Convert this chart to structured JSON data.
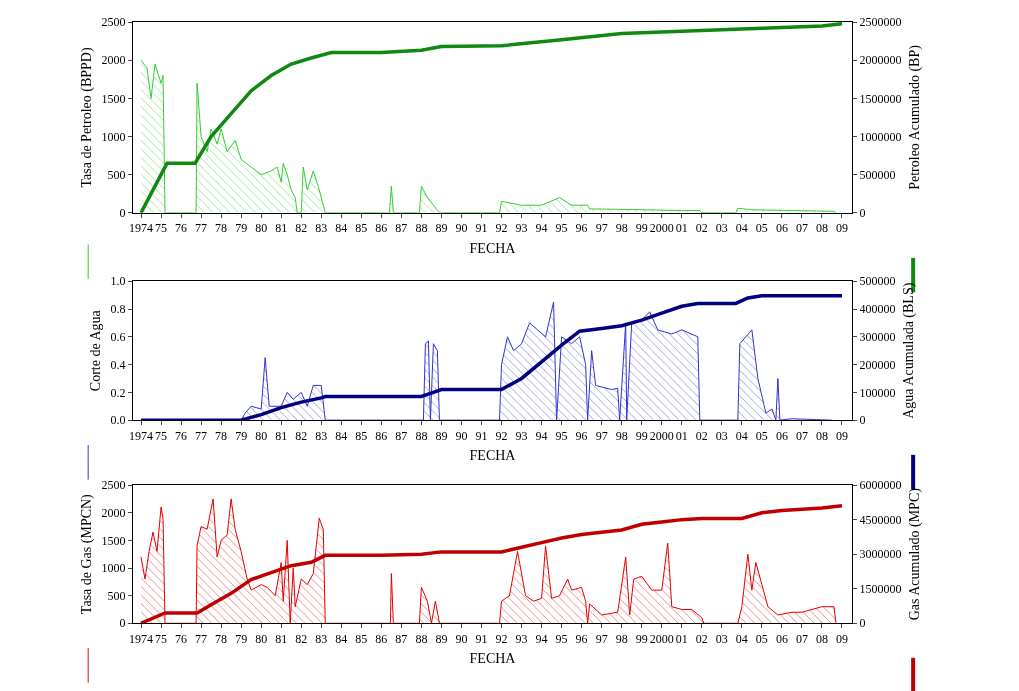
{
  "chart_data": [
    {
      "type": "area",
      "xlabel": "FECHA",
      "ylabel": "Tasa de Petroleo (BPPD)",
      "y2label": "Petroleo Acumulado (BP)",
      "xlim": [
        1973.6,
        2009.5
      ],
      "xticks": [
        {
          "value": 1974,
          "label": "1974"
        },
        {
          "value": 1975,
          "label": "75"
        },
        {
          "value": 1976,
          "label": "76"
        },
        {
          "value": 1977,
          "label": "77"
        },
        {
          "value": 1978,
          "label": "78"
        },
        {
          "value": 1979,
          "label": "79"
        },
        {
          "value": 1980,
          "label": "80"
        },
        {
          "value": 1981,
          "label": "81"
        },
        {
          "value": 1982,
          "label": "82"
        },
        {
          "value": 1983,
          "label": "83"
        },
        {
          "value": 1984,
          "label": "84"
        },
        {
          "value": 1985,
          "label": "85"
        },
        {
          "value": 1986,
          "label": "86"
        },
        {
          "value": 1987,
          "label": "87"
        },
        {
          "value": 1988,
          "label": "88"
        },
        {
          "value": 1989,
          "label": "89"
        },
        {
          "value": 1990,
          "label": "90"
        },
        {
          "value": 1991,
          "label": "91"
        },
        {
          "value": 1992,
          "label": "92"
        },
        {
          "value": 1993,
          "label": "93"
        },
        {
          "value": 1994,
          "label": "94"
        },
        {
          "value": 1995,
          "label": "95"
        },
        {
          "value": 1996,
          "label": "96"
        },
        {
          "value": 1997,
          "label": "97"
        },
        {
          "value": 1998,
          "label": "98"
        },
        {
          "value": 1999,
          "label": "99"
        },
        {
          "value": 2000,
          "label": "2000"
        },
        {
          "value": 2001,
          "label": "01"
        },
        {
          "value": 2002,
          "label": "02"
        },
        {
          "value": 2003,
          "label": "03"
        },
        {
          "value": 2004,
          "label": "04"
        },
        {
          "value": 2005,
          "label": "05"
        },
        {
          "value": 2006,
          "label": "06"
        },
        {
          "value": 2007,
          "label": "07"
        },
        {
          "value": 2008,
          "label": "08"
        },
        {
          "value": 2009,
          "label": "09"
        }
      ],
      "ylim": [
        0,
        2500
      ],
      "yticks": [
        0,
        500,
        1000,
        1500,
        2000,
        2500
      ],
      "y2lim": [
        0,
        2500000
      ],
      "y2ticks": [
        0,
        500000,
        1000000,
        1500000,
        2000000,
        2500000
      ],
      "series": [
        {
          "color": "#33cc33",
          "x": [
            1974.0,
            1974.3,
            1974.5,
            1974.7,
            1975.0,
            1975.1,
            1975.2,
            1976.75,
            1976.8,
            1977.0,
            1977.3,
            1977.5,
            1977.8,
            1978.0,
            1978.3,
            1978.7,
            1979.0,
            1979.5,
            1980.0,
            1980.5,
            1980.8,
            1981.0,
            1981.1,
            1981.3,
            1981.5,
            1981.7,
            1981.8,
            1982.0,
            1982.1,
            1982.3,
            1982.6,
            1982.9,
            1983.1,
            1983.2,
            1986.4,
            1986.5,
            1986.6,
            1987.9,
            1988.0,
            1988.3,
            1988.6,
            1988.9,
            1991.9,
            1992.0,
            1993.0,
            1994.0,
            1994.9,
            1995.5,
            1996.3,
            1996.4,
            1997.0,
            2001.0,
            2001.9,
            2002.0,
            2003.7,
            2003.8,
            2004.5,
            2008.6,
            2008.7
          ],
          "values": [
            2000,
            1900,
            1500,
            1950,
            1700,
            1800,
            0,
            0,
            1700,
            1000,
            800,
            1100,
            900,
            1100,
            800,
            950,
            700,
            600,
            500,
            550,
            600,
            400,
            650,
            500,
            300,
            200,
            0,
            0,
            600,
            300,
            550,
            300,
            100,
            0,
            0,
            350,
            0,
            0,
            350,
            200,
            100,
            0,
            0,
            150,
            100,
            100,
            200,
            100,
            100,
            50,
            50,
            30,
            30,
            0,
            0,
            60,
            40,
            20,
            0
          ]
        },
        {
          "type": "line",
          "axis": "y2",
          "color": "#118811",
          "x": [
            1974.0,
            1975.0,
            1975.3,
            1976.7,
            1977.5,
            1978.5,
            1979.5,
            1980.5,
            1981.5,
            1982.5,
            1983.5,
            1986.0,
            1988.0,
            1989.0,
            1992.0,
            1995.0,
            1998.0,
            2002.0,
            2005.0,
            2008.0,
            2009.0
          ],
          "values": [
            0,
            500000,
            650000,
            650000,
            1000000,
            1300000,
            1600000,
            1800000,
            1950000,
            2030000,
            2100000,
            2100000,
            2130000,
            2180000,
            2190000,
            2270000,
            2350000,
            2390000,
            2420000,
            2450000,
            2480000
          ]
        }
      ]
    },
    {
      "type": "area",
      "xlabel": "FECHA",
      "ylabel": "Corte de Agua",
      "y2label": "Agua Acumulada (BLS)",
      "xlim": [
        1973.6,
        2009.5
      ],
      "xticks": [
        {
          "value": 1974,
          "label": "1974"
        },
        {
          "value": 1975,
          "label": "75"
        },
        {
          "value": 1976,
          "label": "76"
        },
        {
          "value": 1977,
          "label": "77"
        },
        {
          "value": 1978,
          "label": "78"
        },
        {
          "value": 1979,
          "label": "79"
        },
        {
          "value": 1980,
          "label": "80"
        },
        {
          "value": 1981,
          "label": "81"
        },
        {
          "value": 1982,
          "label": "82"
        },
        {
          "value": 1983,
          "label": "83"
        },
        {
          "value": 1984,
          "label": "84"
        },
        {
          "value": 1985,
          "label": "85"
        },
        {
          "value": 1986,
          "label": "86"
        },
        {
          "value": 1987,
          "label": "87"
        },
        {
          "value": 1988,
          "label": "88"
        },
        {
          "value": 1989,
          "label": "89"
        },
        {
          "value": 1990,
          "label": "90"
        },
        {
          "value": 1991,
          "label": "91"
        },
        {
          "value": 1992,
          "label": "92"
        },
        {
          "value": 1993,
          "label": "93"
        },
        {
          "value": 1994,
          "label": "94"
        },
        {
          "value": 1995,
          "label": "95"
        },
        {
          "value": 1996,
          "label": "96"
        },
        {
          "value": 1997,
          "label": "97"
        },
        {
          "value": 1998,
          "label": "98"
        },
        {
          "value": 1999,
          "label": "99"
        },
        {
          "value": 2000,
          "label": "2000"
        },
        {
          "value": 2001,
          "label": "01"
        },
        {
          "value": 2002,
          "label": "02"
        },
        {
          "value": 2003,
          "label": "03"
        },
        {
          "value": 2004,
          "label": "04"
        },
        {
          "value": 2005,
          "label": "05"
        },
        {
          "value": 2006,
          "label": "06"
        },
        {
          "value": 2007,
          "label": "07"
        },
        {
          "value": 2008,
          "label": "08"
        },
        {
          "value": 2009,
          "label": "09"
        }
      ],
      "ylim": [
        0,
        1.0
      ],
      "yticks": [
        {
          "value": 0,
          "label": "0.0"
        },
        {
          "value": 0.2,
          "label": "0.2"
        },
        {
          "value": 0.4,
          "label": "0.4"
        },
        {
          "value": 0.6,
          "label": "0.6"
        },
        {
          "value": 0.8,
          "label": "0.8"
        },
        {
          "value": 1.0,
          "label": "1.0"
        }
      ],
      "y2lim": [
        0,
        500000
      ],
      "y2ticks": [
        0,
        100000,
        200000,
        300000,
        400000,
        500000
      ],
      "series": [
        {
          "color": "#3333cc",
          "x": [
            1974.0,
            1979.0,
            1979.2,
            1979.5,
            1980.0,
            1980.2,
            1980.4,
            1981.0,
            1981.3,
            1981.6,
            1982.0,
            1982.3,
            1982.6,
            1983.0,
            1983.2,
            1988.1,
            1988.2,
            1988.35,
            1988.45,
            1988.6,
            1988.8,
            1988.9,
            1991.9,
            1992.0,
            1992.3,
            1992.6,
            1993.0,
            1993.4,
            1993.8,
            1994.2,
            1994.6,
            1994.75,
            1995.0,
            1995.5,
            1995.9,
            1996.2,
            1996.3,
            1996.5,
            1996.7,
            1997.5,
            1997.8,
            1997.9,
            1998.2,
            1998.25,
            1998.5,
            1999.0,
            1999.4,
            1999.8,
            2000.5,
            2001.0,
            2001.8,
            2001.9,
            2003.8,
            2003.9,
            2004.2,
            2004.5,
            2004.8,
            2005.2,
            2005.5,
            2005.7,
            2005.8,
            2005.9,
            2006.5,
            2008.5
          ],
          "values": [
            0,
            0,
            0.05,
            0.1,
            0.08,
            0.45,
            0.1,
            0.1,
            0.2,
            0.15,
            0.2,
            0.1,
            0.25,
            0.25,
            0,
            0,
            0.55,
            0.57,
            0,
            0.55,
            0.5,
            0,
            0,
            0.4,
            0.6,
            0.5,
            0.55,
            0.7,
            0.65,
            0.6,
            0.85,
            0,
            0.6,
            0.55,
            0.6,
            0.4,
            0,
            0.5,
            0.25,
            0.22,
            0.23,
            0,
            0.7,
            0,
            0.7,
            0.72,
            0.78,
            0.65,
            0.62,
            0.65,
            0.6,
            0,
            0,
            0.55,
            0.6,
            0.65,
            0.3,
            0.05,
            0.08,
            0,
            0.3,
            0,
            0.01,
            0
          ]
        },
        {
          "type": "line",
          "axis": "y2",
          "color": "#000080",
          "x": [
            1974.0,
            1979.0,
            1980.0,
            1981.0,
            1982.0,
            1983.0,
            1983.2,
            1988.0,
            1988.6,
            1989.0,
            1992.0,
            1993.0,
            1994.0,
            1995.0,
            1995.9,
            1997.0,
            1998.0,
            1999.0,
            2000.0,
            2001.0,
            2001.8,
            2003.7,
            2004.3,
            2005.0,
            2009.0
          ],
          "values": [
            0,
            0,
            20000,
            45000,
            65000,
            80000,
            85000,
            85000,
            100000,
            110000,
            110000,
            150000,
            210000,
            270000,
            320000,
            330000,
            340000,
            360000,
            385000,
            410000,
            420000,
            420000,
            440000,
            448000,
            448000
          ]
        }
      ]
    },
    {
      "type": "area",
      "xlabel": "FECHA",
      "ylabel": "Tasa de Gas (MPCN)",
      "y2label": "Gas Acumulado (MPC)",
      "xlim": [
        1973.6,
        2009.5
      ],
      "xticks": [
        {
          "value": 1974,
          "label": "1974"
        },
        {
          "value": 1975,
          "label": "75"
        },
        {
          "value": 1976,
          "label": "76"
        },
        {
          "value": 1977,
          "label": "77"
        },
        {
          "value": 1978,
          "label": "78"
        },
        {
          "value": 1979,
          "label": "79"
        },
        {
          "value": 1980,
          "label": "80"
        },
        {
          "value": 1981,
          "label": "81"
        },
        {
          "value": 1982,
          "label": "82"
        },
        {
          "value": 1983,
          "label": "83"
        },
        {
          "value": 1984,
          "label": "84"
        },
        {
          "value": 1985,
          "label": "85"
        },
        {
          "value": 1986,
          "label": "86"
        },
        {
          "value": 1987,
          "label": "87"
        },
        {
          "value": 1988,
          "label": "88"
        },
        {
          "value": 1989,
          "label": "89"
        },
        {
          "value": 1990,
          "label": "90"
        },
        {
          "value": 1991,
          "label": "91"
        },
        {
          "value": 1992,
          "label": "92"
        },
        {
          "value": 1993,
          "label": "93"
        },
        {
          "value": 1994,
          "label": "94"
        },
        {
          "value": 1995,
          "label": "95"
        },
        {
          "value": 1996,
          "label": "96"
        },
        {
          "value": 1997,
          "label": "97"
        },
        {
          "value": 1998,
          "label": "98"
        },
        {
          "value": 1999,
          "label": "99"
        },
        {
          "value": 2000,
          "label": "2000"
        },
        {
          "value": 2001,
          "label": "01"
        },
        {
          "value": 2002,
          "label": "02"
        },
        {
          "value": 2003,
          "label": "03"
        },
        {
          "value": 2004,
          "label": "04"
        },
        {
          "value": 2005,
          "label": "05"
        },
        {
          "value": 2006,
          "label": "06"
        },
        {
          "value": 2007,
          "label": "07"
        },
        {
          "value": 2008,
          "label": "08"
        },
        {
          "value": 2009,
          "label": "09"
        }
      ],
      "ylim": [
        0,
        2500
      ],
      "yticks": [
        0,
        500,
        1000,
        1500,
        2000,
        2500
      ],
      "y2lim": [
        0,
        6000000
      ],
      "y2ticks": [
        0,
        1500000,
        3000000,
        4500000,
        6000000
      ],
      "series": [
        {
          "color": "#e00000",
          "x": [
            1974.0,
            1974.2,
            1974.4,
            1974.6,
            1974.8,
            1975.0,
            1975.1,
            1975.2,
            1976.75,
            1976.8,
            1977.0,
            1977.3,
            1977.6,
            1977.8,
            1978.0,
            1978.3,
            1978.5,
            1978.7,
            1979.0,
            1979.3,
            1979.5,
            1980.0,
            1980.3,
            1980.7,
            1981.0,
            1981.1,
            1981.3,
            1981.45,
            1981.6,
            1981.7,
            1982.0,
            1982.3,
            1982.6,
            1982.9,
            1983.1,
            1983.2,
            1986.45,
            1986.5,
            1986.6,
            1987.9,
            1988.0,
            1988.3,
            1988.5,
            1988.7,
            1988.9,
            1991.9,
            1992.0,
            1992.4,
            1992.8,
            1993.2,
            1993.6,
            1994.0,
            1994.2,
            1994.5,
            1994.9,
            1995.3,
            1995.5,
            1996.0,
            1996.2,
            1996.3,
            1996.4,
            1997.0,
            1997.8,
            1998.2,
            1998.4,
            1998.6,
            1999.0,
            1999.5,
            2000.0,
            2000.3,
            2000.5,
            2001.0,
            2001.5,
            2002.0,
            2002.1,
            2003.8,
            2004.0,
            2004.3,
            2004.5,
            2004.7,
            2005.0,
            2005.3,
            2005.8,
            2006.5,
            2007.0,
            2007.5,
            2008.0,
            2008.6,
            2008.7
          ],
          "values": [
            1200,
            800,
            1300,
            1650,
            1300,
            2100,
            1900,
            0,
            0,
            1400,
            1750,
            1700,
            2250,
            1200,
            1500,
            1600,
            2250,
            1700,
            1300,
            800,
            600,
            700,
            650,
            500,
            1100,
            400,
            1500,
            0,
            1000,
            300,
            800,
            700,
            900,
            1900,
            1700,
            0,
            0,
            900,
            0,
            0,
            650,
            400,
            0,
            400,
            0,
            0,
            400,
            500,
            1300,
            500,
            400,
            450,
            1400,
            450,
            500,
            800,
            600,
            650,
            400,
            0,
            350,
            150,
            200,
            1200,
            150,
            800,
            850,
            600,
            600,
            1450,
            300,
            250,
            250,
            100,
            0,
            0,
            300,
            1250,
            600,
            1100,
            700,
            300,
            150,
            200,
            200,
            250,
            300,
            300,
            0
          ]
        },
        {
          "type": "line",
          "axis": "y2",
          "color": "#c00000",
          "x": [
            1974.0,
            1975.2,
            1976.8,
            1977.5,
            1978.5,
            1979.5,
            1980.5,
            1981.5,
            1982.5,
            1983.2,
            1986.0,
            1988.0,
            1989.0,
            1992.0,
            1993.0,
            1994.0,
            1995.0,
            1996.0,
            1997.0,
            1998.0,
            1999.0,
            2000.0,
            2001.0,
            2002.0,
            2004.0,
            2005.0,
            2006.0,
            2007.0,
            2008.0,
            2009.0
          ],
          "values": [
            0,
            450000,
            450000,
            800000,
            1300000,
            1900000,
            2200000,
            2500000,
            2650000,
            2950000,
            2950000,
            3000000,
            3100000,
            3100000,
            3300000,
            3500000,
            3700000,
            3850000,
            3950000,
            4050000,
            4300000,
            4400000,
            4500000,
            4550000,
            4550000,
            4800000,
            4900000,
            4950000,
            5000000,
            5100000
          ]
        }
      ]
    }
  ]
}
